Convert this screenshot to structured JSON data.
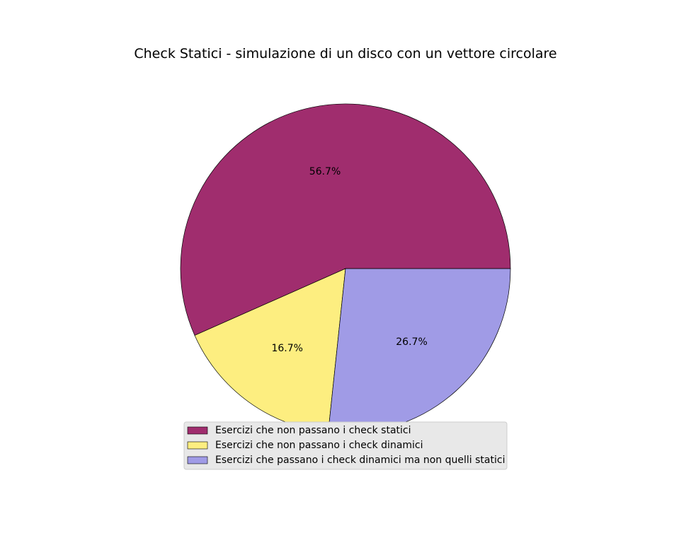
{
  "chart_data": {
    "type": "pie",
    "title": "Check Statici - simulazione di un disco con un vettore circolare",
    "slices": [
      {
        "label": "Esercizi che non passano i check statici",
        "value": 56.7,
        "pct_label": "56.7%",
        "color": "#a02d6e"
      },
      {
        "label": "Esercizi che non passano i check dinamici",
        "value": 16.7,
        "pct_label": "16.7%",
        "color": "#fdee80"
      },
      {
        "label": "Esercizi che passano i check dinamici ma non quelli statici",
        "value": 26.7,
        "pct_label": "26.7%",
        "color": "#a09be6"
      }
    ],
    "start_angle_deg": 0,
    "direction": "counterclockwise",
    "legend_position": "lower-center"
  }
}
